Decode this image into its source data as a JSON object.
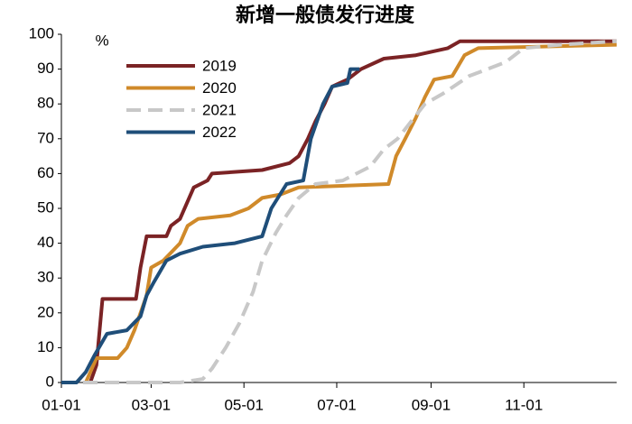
{
  "chart_data": {
    "type": "line",
    "title": "新增一般债发行进度",
    "y_label": "%",
    "xlim": [
      0,
      365
    ],
    "xticks": [
      {
        "value": 0,
        "label": "01-01"
      },
      {
        "value": 59,
        "label": "03-01"
      },
      {
        "value": 120,
        "label": "05-01"
      },
      {
        "value": 181,
        "label": "07-01"
      },
      {
        "value": 243,
        "label": "09-01"
      },
      {
        "value": 304,
        "label": "11-01"
      }
    ],
    "ylim": [
      0,
      100
    ],
    "yticks": [
      0,
      10,
      20,
      30,
      40,
      50,
      60,
      70,
      80,
      90,
      100
    ],
    "grid": false,
    "legend": "upper left",
    "series": [
      {
        "name": "2019",
        "color": "#7b2325",
        "dash": false,
        "x": [
          19,
          23,
          27,
          49,
          52,
          56,
          69,
          72,
          78,
          84,
          87,
          96,
          99,
          132,
          150,
          156,
          162,
          167,
          173,
          178,
          188,
          197,
          212,
          233,
          254,
          262,
          365
        ],
        "values": [
          0,
          5,
          24,
          24,
          33,
          42,
          42,
          45,
          47,
          53,
          56,
          58,
          60,
          61,
          63,
          65,
          70,
          75,
          80,
          85,
          87,
          90,
          93,
          94,
          96,
          98,
          98
        ]
      },
      {
        "name": "2020",
        "color": "#d08a2a",
        "dash": false,
        "x": [
          16,
          23,
          37,
          43,
          48,
          56,
          59,
          67,
          78,
          83,
          90,
          111,
          123,
          132,
          144,
          156,
          215,
          220,
          226,
          233,
          239,
          245,
          257,
          265,
          274,
          365
        ],
        "values": [
          0,
          7,
          7,
          10,
          15,
          25,
          33,
          35,
          40,
          45,
          47,
          48,
          50,
          53,
          54,
          56,
          57,
          65,
          70,
          76,
          82,
          87,
          88,
          94,
          96,
          97
        ]
      },
      {
        "name": "2021",
        "color": "#c8c8c8",
        "dash": true,
        "x": [
          0,
          78,
          93,
          99,
          108,
          117,
          126,
          132,
          141,
          148,
          156,
          167,
          185,
          203,
          212,
          221,
          230,
          239,
          251,
          268,
          292,
          304,
          328,
          365
        ],
        "values": [
          0,
          0,
          1,
          4,
          10,
          17,
          26,
          35,
          43,
          48,
          53,
          57,
          58,
          62,
          67,
          70,
          75,
          80,
          83,
          88,
          92,
          96,
          97,
          98
        ]
      },
      {
        "name": "2022",
        "color": "#1f4e79",
        "dash": false,
        "x": [
          0,
          10,
          16,
          22,
          30,
          43,
          52,
          56,
          61,
          69,
          78,
          93,
          114,
          132,
          138,
          148,
          159,
          164,
          172,
          178,
          188,
          190,
          196
        ],
        "values": [
          0,
          0,
          3,
          8,
          14,
          15,
          19,
          25,
          29,
          35,
          37,
          39,
          40,
          42,
          50,
          57,
          58,
          70,
          80,
          85,
          86,
          90,
          90
        ]
      }
    ]
  }
}
